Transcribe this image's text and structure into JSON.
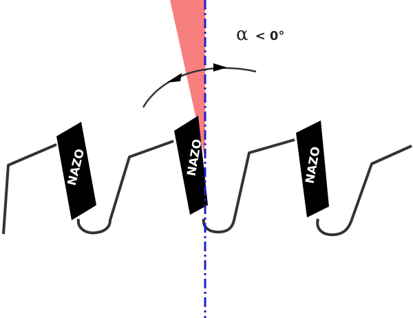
{
  "angle_label": {
    "symbol": "α",
    "relation": "< 0°"
  },
  "tips": [
    {
      "label": "NAZO"
    },
    {
      "label": "NAZO"
    },
    {
      "label": "NAZO"
    }
  ]
}
